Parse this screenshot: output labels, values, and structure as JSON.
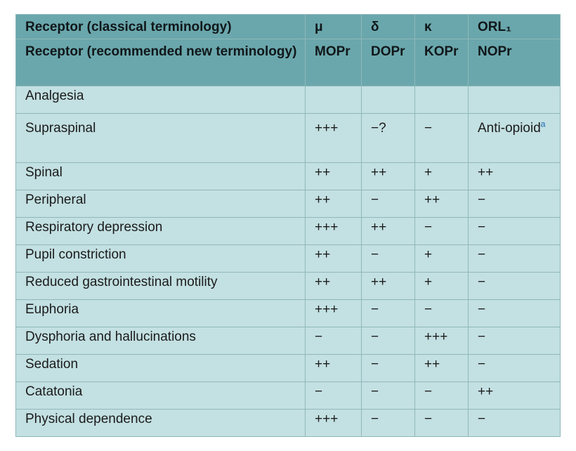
{
  "header": {
    "row1": {
      "label": "Receptor (classical terminology)",
      "mu": "μ",
      "delta": "δ",
      "kappa": "κ",
      "orl": "ORL₁"
    },
    "row2": {
      "label": "Receptor (recommended new terminology)",
      "mu": "MOPr",
      "delta": "DOPr",
      "kappa": "KOPr",
      "orl": "NOPr"
    }
  },
  "rows": [
    {
      "effect": "Analgesia",
      "mu": "",
      "delta": "",
      "kappa": "",
      "orl": ""
    },
    {
      "effect": "Supraspinal",
      "mu": "+++",
      "delta": "−?",
      "kappa": "−",
      "orl": "Anti-opioid",
      "orl_footnote": "a"
    },
    {
      "effect": "Spinal",
      "mu": "++",
      "delta": "++",
      "kappa": "+",
      "orl": "++"
    },
    {
      "effect": "Peripheral",
      "mu": "++",
      "delta": "−",
      "kappa": "++",
      "orl": "−"
    },
    {
      "effect": "Respiratory depression",
      "mu": "+++",
      "delta": "++",
      "kappa": "−",
      "orl": "−"
    },
    {
      "effect": "Pupil constriction",
      "mu": "++",
      "delta": "−",
      "kappa": "+",
      "orl": "−"
    },
    {
      "effect": "Reduced gastrointestinal motility",
      "mu": "++",
      "delta": "++",
      "kappa": "+",
      "orl": "−"
    },
    {
      "effect": "Euphoria",
      "mu": "+++",
      "delta": "−",
      "kappa": "−",
      "orl": "−"
    },
    {
      "effect": "Dysphoria and hallucinations",
      "mu": "−",
      "delta": "−",
      "kappa": "+++",
      "orl": "−"
    },
    {
      "effect": "Sedation",
      "mu": "++",
      "delta": "−",
      "kappa": "++",
      "orl": "−"
    },
    {
      "effect": "Catatonia",
      "mu": "−",
      "delta": "−",
      "kappa": "−",
      "orl": "++"
    },
    {
      "effect": "Physical dependence",
      "mu": "+++",
      "delta": "−",
      "kappa": "−",
      "orl": "−"
    }
  ]
}
